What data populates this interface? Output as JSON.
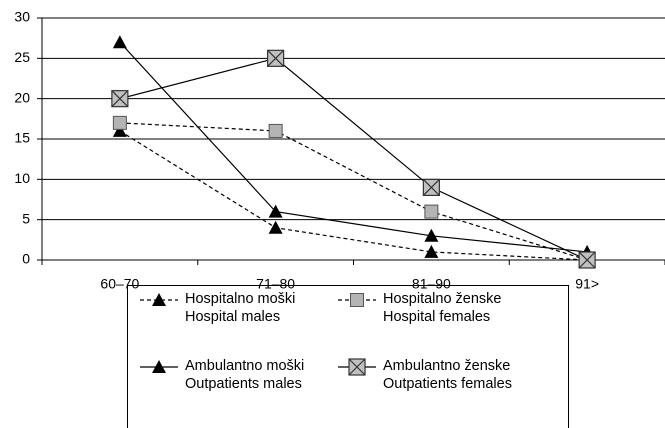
{
  "chart_data": {
    "type": "line",
    "categories": [
      "60–70",
      "71–80",
      "81–90",
      "91>"
    ],
    "series": [
      {
        "name": "Hospitalno moški\nHospital males",
        "color": "#000000",
        "line_style": "dashed",
        "marker": "triangle",
        "values": [
          16,
          4,
          1,
          0
        ]
      },
      {
        "name": "Hospitalno ženske\nHospital females",
        "color": "#000000",
        "line_style": "dashed",
        "marker": "square",
        "values": [
          17,
          16,
          6,
          0
        ]
      },
      {
        "name": "Ambulantno moški\nOutpatients males",
        "color": "#000000",
        "line_style": "solid",
        "marker": "triangle",
        "values": [
          27,
          6,
          3,
          1
        ]
      },
      {
        "name": "Ambulantno ženske\nOutpatients females",
        "color": "#000000",
        "line_style": "solid",
        "marker": "xsquare",
        "values": [
          20,
          25,
          9,
          0
        ]
      }
    ],
    "ylim": [
      0,
      30
    ],
    "yticks": [
      0,
      5,
      10,
      15,
      20,
      25,
      30
    ],
    "grid": true,
    "legend": "bottom"
  }
}
